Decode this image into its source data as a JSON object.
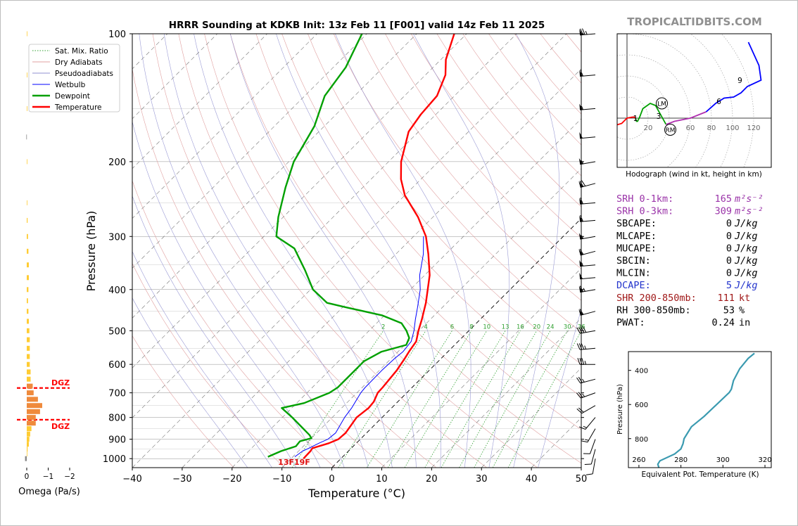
{
  "page": {
    "title": "HRRR Sounding at KDKB Init: 13z Feb 11 [F001] valid 14z Feb 11 2025",
    "watermark": "TROPICALTIDBITS.COM"
  },
  "chart_data": [
    {
      "type": "line",
      "name": "skewt",
      "xlabel": "Temperature (°C)",
      "ylabel": "Pressure (hPa)",
      "xlim": [
        -40,
        50
      ],
      "ylim": [
        1050,
        100
      ],
      "yscale": "log",
      "skew_degrees": 45,
      "x_ticks": [
        -40,
        -30,
        -20,
        -10,
        0,
        10,
        20,
        30,
        40,
        50
      ],
      "y_ticks": [
        100,
        200,
        300,
        400,
        500,
        600,
        700,
        800,
        900,
        1000
      ],
      "legend": [
        "Sat. Mix. Ratio",
        "Dry Adiabats",
        "Pseudoadiabats",
        "Wetbulb",
        "Dewpoint",
        "Temperature"
      ],
      "legend_position": "top-left",
      "mixing_ratio_labels": [
        "2",
        "4",
        "6",
        "8",
        "10",
        "13",
        "16",
        "20",
        "24",
        "30",
        "36"
      ],
      "surface_label": "13F19F",
      "dgz_label": "DGZ",
      "colors": {
        "temperature": "#ff0000",
        "dewpoint": "#00a000",
        "wetbulb": "#0000ff",
        "dry": "#e0a0a0",
        "moist": "#9090d0",
        "mix": "#30a030",
        "dgz": "#ff0000"
      },
      "series": [
        {
          "name": "Temperature",
          "p": [
            1000,
            960,
            945,
            920,
            900,
            870,
            800,
            760,
            735,
            700,
            680,
            620,
            580,
            560,
            530,
            500,
            470,
            430,
            400,
            370,
            330,
            300,
            270,
            240,
            220,
            200,
            170,
            155,
            140,
            125,
            115,
            100
          ],
          "t": [
            -7.5,
            -7.6,
            -7.8,
            -5.5,
            -4.4,
            -4.2,
            -5.1,
            -4.6,
            -4.8,
            -5.8,
            -5.9,
            -6.5,
            -7.3,
            -7.8,
            -8.4,
            -10.1,
            -11.7,
            -14.2,
            -16.5,
            -19.0,
            -23.5,
            -27.5,
            -33.0,
            -40.0,
            -44.0,
            -47.5,
            -52.0,
            -53.0,
            -53.5,
            -56.0,
            -59.0,
            -62.5
          ]
        },
        {
          "name": "Dewpoint",
          "p": [
            990,
            960,
            935,
            910,
            895,
            880,
            800,
            760,
            740,
            700,
            680,
            640,
            590,
            560,
            540,
            520,
            500,
            480,
            460,
            440,
            430,
            400,
            360,
            320,
            300,
            270,
            230,
            200,
            165,
            140,
            120,
            100
          ],
          "t": [
            -15.0,
            -13.5,
            -11.5,
            -11.7,
            -10.0,
            -11.0,
            -18.0,
            -22.0,
            -18.5,
            -15.5,
            -14.9,
            -14.9,
            -14.9,
            -13.3,
            -9.7,
            -10.5,
            -12.5,
            -15.0,
            -20.5,
            -29.5,
            -34.0,
            -39.5,
            -45.0,
            -51.5,
            -57.5,
            -61.0,
            -65.5,
            -69.0,
            -72.0,
            -76.0,
            -77.5,
            -81.0
          ]
        },
        {
          "name": "Wetbulb",
          "p": [
            990,
            960,
            945,
            920,
            900,
            870,
            800,
            760,
            700,
            680,
            620,
            580,
            560,
            530,
            500,
            470,
            440,
            400,
            370,
            330,
            300
          ],
          "t": [
            -9.6,
            -9.2,
            -8.5,
            -7.5,
            -6.5,
            -6.2,
            -7.5,
            -8.0,
            -9.2,
            -9.4,
            -9.5,
            -9.3,
            -9.0,
            -9.4,
            -11.0,
            -13.0,
            -15.0,
            -18.0,
            -21.0,
            -24.5,
            -28.0
          ]
        }
      ],
      "dgz_levels_hpa": [
        682,
        810
      ]
    },
    {
      "type": "bar",
      "name": "omega",
      "xlabel": "Omega (Pa/s)",
      "x_ticks": [
        0,
        -1,
        -2
      ],
      "xlim": [
        0.2,
        -2.0
      ],
      "p": [
        1000,
        975,
        950,
        925,
        900,
        875,
        850,
        825,
        800,
        775,
        750,
        725,
        700,
        675,
        650,
        625,
        600,
        575,
        550,
        525,
        500,
        475,
        450,
        425,
        400,
        375,
        350,
        325,
        300,
        275,
        250,
        200,
        175,
        150,
        125,
        100
      ],
      "values": [
        0.08,
        -0.01,
        -0.04,
        -0.1,
        -0.12,
        -0.16,
        -0.22,
        -0.42,
        -0.42,
        -0.62,
        -0.72,
        -0.52,
        -0.32,
        -0.28,
        -0.18,
        -0.18,
        -0.14,
        -0.14,
        -0.14,
        -0.14,
        -0.12,
        -0.1,
        -0.08,
        -0.06,
        -0.08,
        -0.1,
        -0.1,
        -0.08,
        -0.06,
        -0.04,
        -0.02,
        -0.02,
        0.02,
        -0.02,
        -0.02,
        -0.01
      ],
      "colors": {
        "weak": "#ffcc33",
        "strong": "#ef8a3c"
      }
    },
    {
      "type": "line",
      "name": "hodograph",
      "xlabel": "Hodograph (wind in kt, height in km)",
      "rings": [
        20,
        40,
        60,
        80,
        100,
        120
      ],
      "u": [
        -15,
        -5,
        0,
        5,
        7,
        8,
        9,
        10,
        12,
        15,
        22,
        27,
        37,
        45,
        60,
        75,
        84,
        92,
        101,
        108,
        114,
        127,
        125,
        115
      ],
      "v": [
        -8,
        -5,
        0,
        1,
        1,
        0,
        -3,
        -3,
        1,
        9,
        14,
        12,
        -6,
        -3,
        0,
        6,
        14,
        19,
        20,
        24,
        30,
        36,
        50,
        72
      ],
      "km": [
        0,
        0,
        0,
        0.3,
        0.6,
        1,
        1.2,
        1.4,
        1.6,
        1.8,
        2,
        2.3,
        3,
        4,
        5,
        6,
        6.5,
        7,
        7.5,
        8,
        9,
        9.5,
        10,
        11
      ],
      "segment_colors": [
        "#ff0000",
        "#00a000",
        "#b030b0",
        "#0000ff"
      ],
      "labels": [
        {
          "text": "1",
          "u": 8,
          "v": 0
        },
        {
          "text": "3",
          "u": 30,
          "v": 2
        },
        {
          "text": "6",
          "u": 87,
          "v": 16
        },
        {
          "text": "9",
          "u": 107,
          "v": 36
        }
      ],
      "markers": [
        {
          "text": "LM",
          "u": 33,
          "v": 14
        },
        {
          "text": "RM",
          "u": 41,
          "v": -11
        }
      ]
    },
    {
      "type": "line",
      "name": "theta_e",
      "xlabel": "Equivalent Pot. Temperature (K)",
      "ylabel": "Pressure (hPa)",
      "xlim": [
        255,
        323
      ],
      "ylim": [
        970,
        290
      ],
      "x_ticks": [
        260,
        280,
        300,
        320
      ],
      "y_ticks": [
        400,
        600,
        800
      ],
      "color": "#3a9ab0",
      "x": [
        269.5,
        269,
        270,
        277,
        280,
        281,
        281.5,
        283,
        285,
        291,
        303,
        304,
        305,
        308,
        312,
        315
      ],
      "p": [
        970,
        950,
        930,
        890,
        860,
        830,
        800,
        770,
        730,
        670,
        530,
        510,
        460,
        390,
        330,
        300
      ]
    }
  ],
  "indices": [
    {
      "label": "SRH 0-1km:",
      "value": "165",
      "unit": "m²s⁻²",
      "color": "#9a33a8"
    },
    {
      "label": "SRH 0-3km:",
      "value": "309",
      "unit": "m²s⁻²",
      "color": "#9a33a8"
    },
    {
      "label": "SBCAPE:",
      "value": "0",
      "unit": "J/kg",
      "color": "#000000"
    },
    {
      "label": "MLCAPE:",
      "value": "0",
      "unit": "J/kg",
      "color": "#000000"
    },
    {
      "label": "MUCAPE:",
      "value": "0",
      "unit": "J/kg",
      "color": "#000000"
    },
    {
      "label": "SBCIN:",
      "value": "0",
      "unit": "J/kg",
      "color": "#000000"
    },
    {
      "label": "MLCIN:",
      "value": "0",
      "unit": "J/kg",
      "color": "#000000"
    },
    {
      "label": "DCAPE:",
      "value": "5",
      "unit": "J/kg",
      "color": "#2233cc"
    },
    {
      "label": "SHR 200-850mb:",
      "value": "111",
      "unit": "kt",
      "color": "#a01818"
    },
    {
      "label": "RH 300-850mb:",
      "value": "53",
      "unit": "%",
      "color": "#000000"
    },
    {
      "label": "PWAT:",
      "value": "0.24",
      "unit": "in",
      "color": "#000000"
    }
  ],
  "barbs": {
    "p": [
      100,
      125,
      150,
      175,
      200,
      225,
      250,
      275,
      300,
      325,
      350,
      375,
      400,
      450,
      500,
      550,
      600,
      650,
      700,
      750,
      800,
      850,
      900,
      950,
      1000
    ],
    "speed_kt": [
      75,
      60,
      55,
      50,
      55,
      70,
      60,
      60,
      55,
      60,
      55,
      50,
      65,
      60,
      40,
      35,
      35,
      25,
      25,
      20,
      15,
      15,
      10,
      10,
      10
    ],
    "dir_deg": [
      265,
      265,
      265,
      265,
      260,
      255,
      265,
      265,
      260,
      255,
      265,
      265,
      260,
      255,
      260,
      265,
      270,
      255,
      250,
      240,
      220,
      210,
      200,
      195,
      190
    ]
  }
}
